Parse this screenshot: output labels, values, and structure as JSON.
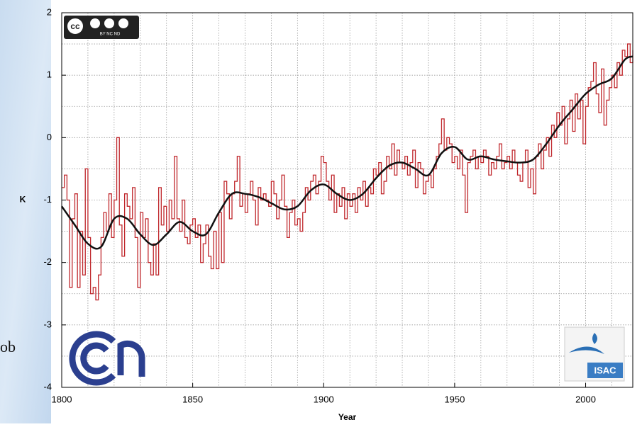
{
  "side_text": "ob",
  "logos": {
    "license_badge": "cc",
    "license": "BY NC ND",
    "institute": "ISAC"
  },
  "chart_data": {
    "type": "line",
    "xlabel": "Year",
    "ylabel": "K",
    "xlim": [
      1800,
      2018
    ],
    "ylim": [
      -4,
      2
    ],
    "xticks": [
      1800,
      1850,
      1900,
      1950,
      2000
    ],
    "yticks": [
      -4,
      -3,
      -2,
      -1,
      0,
      1,
      2
    ],
    "xgrid": [
      1810,
      1820,
      1830,
      1840,
      1850,
      1860,
      1870,
      1880,
      1890,
      1900,
      1910,
      1920,
      1930,
      1940,
      1950,
      1960,
      1970,
      1980,
      1990,
      2000,
      2010
    ],
    "ygrid": [
      -3.5,
      -3,
      -2.5,
      -2,
      -1.5,
      -1,
      -0.5,
      0,
      0.5,
      1,
      1.5
    ],
    "grid": true,
    "x": [
      1800,
      1801,
      1802,
      1803,
      1804,
      1805,
      1806,
      1807,
      1808,
      1809,
      1810,
      1811,
      1812,
      1813,
      1814,
      1815,
      1816,
      1817,
      1818,
      1819,
      1820,
      1821,
      1822,
      1823,
      1824,
      1825,
      1826,
      1827,
      1828,
      1829,
      1830,
      1831,
      1832,
      1833,
      1834,
      1835,
      1836,
      1837,
      1838,
      1839,
      1840,
      1841,
      1842,
      1843,
      1844,
      1845,
      1846,
      1847,
      1848,
      1849,
      1850,
      1851,
      1852,
      1853,
      1854,
      1855,
      1856,
      1857,
      1858,
      1859,
      1860,
      1861,
      1862,
      1863,
      1864,
      1865,
      1866,
      1867,
      1868,
      1869,
      1870,
      1871,
      1872,
      1873,
      1874,
      1875,
      1876,
      1877,
      1878,
      1879,
      1880,
      1881,
      1882,
      1883,
      1884,
      1885,
      1886,
      1887,
      1888,
      1889,
      1890,
      1891,
      1892,
      1893,
      1894,
      1895,
      1896,
      1897,
      1898,
      1899,
      1900,
      1901,
      1902,
      1903,
      1904,
      1905,
      1906,
      1907,
      1908,
      1909,
      1910,
      1911,
      1912,
      1913,
      1914,
      1915,
      1916,
      1917,
      1918,
      1919,
      1920,
      1921,
      1922,
      1923,
      1924,
      1925,
      1926,
      1927,
      1928,
      1929,
      1930,
      1931,
      1932,
      1933,
      1934,
      1935,
      1936,
      1937,
      1938,
      1939,
      1940,
      1941,
      1942,
      1943,
      1944,
      1945,
      1946,
      1947,
      1948,
      1949,
      1950,
      1951,
      1952,
      1953,
      1954,
      1955,
      1956,
      1957,
      1958,
      1959,
      1960,
      1961,
      1962,
      1963,
      1964,
      1965,
      1966,
      1967,
      1968,
      1969,
      1970,
      1971,
      1972,
      1973,
      1974,
      1975,
      1976,
      1977,
      1978,
      1979,
      1980,
      1981,
      1982,
      1983,
      1984,
      1985,
      1986,
      1987,
      1988,
      1989,
      1990,
      1991,
      1992,
      1993,
      1994,
      1995,
      1996,
      1997,
      1998,
      1999,
      2000,
      2001,
      2002,
      2003,
      2004,
      2005,
      2006,
      2007,
      2008,
      2009,
      2010,
      2011,
      2012,
      2013,
      2014,
      2015,
      2016,
      2017,
      2018
    ],
    "series": [
      {
        "style": "step",
        "color": "#c0282d",
        "values": [
          -0.8,
          -0.6,
          -1.0,
          -2.4,
          -1.3,
          -0.9,
          -2.4,
          -1.5,
          -2.2,
          -0.5,
          -1.6,
          -2.5,
          -2.4,
          -2.6,
          -2.2,
          -1.6,
          -1.2,
          -1.5,
          -0.9,
          -1.6,
          -1.0,
          0.0,
          -1.4,
          -1.9,
          -0.9,
          -1.1,
          -1.3,
          -0.8,
          -1.6,
          -2.4,
          -1.2,
          -1.6,
          -1.3,
          -2.0,
          -2.2,
          -1.7,
          -2.2,
          -0.8,
          -1.4,
          -1.1,
          -1.5,
          -1.0,
          -1.3,
          -0.3,
          -1.3,
          -1.5,
          -1.0,
          -1.6,
          -1.7,
          -1.4,
          -1.3,
          -1.6,
          -1.4,
          -2.0,
          -1.7,
          -1.4,
          -1.9,
          -2.1,
          -1.5,
          -2.1,
          -1.2,
          -2.0,
          -0.7,
          -0.9,
          -1.3,
          -0.9,
          -0.7,
          -0.3,
          -1.1,
          -0.9,
          -1.2,
          -0.9,
          -0.7,
          -1.0,
          -1.4,
          -0.8,
          -1.0,
          -0.9,
          -1.0,
          -1.1,
          -0.7,
          -0.9,
          -1.3,
          -1.0,
          -0.6,
          -1.1,
          -1.6,
          -1.2,
          -1.0,
          -1.4,
          -1.3,
          -1.5,
          -1.2,
          -0.8,
          -1.0,
          -0.7,
          -0.6,
          -0.9,
          -0.7,
          -0.3,
          -0.4,
          -0.7,
          -1.0,
          -0.6,
          -1.2,
          -0.9,
          -1.1,
          -0.8,
          -1.3,
          -0.9,
          -1.1,
          -0.9,
          -1.2,
          -0.8,
          -1.0,
          -0.7,
          -1.1,
          -0.8,
          -0.9,
          -0.5,
          -0.6,
          -0.4,
          -0.9,
          -0.7,
          -0.3,
          -0.5,
          -0.1,
          -0.6,
          -0.2,
          -0.4,
          -0.5,
          -0.3,
          -0.6,
          -0.4,
          -0.2,
          -0.8,
          -0.4,
          -0.5,
          -0.9,
          -0.7,
          -0.6,
          -0.8,
          -0.5,
          -0.3,
          -0.1,
          0.3,
          -0.2,
          0.0,
          -0.1,
          -0.4,
          -0.3,
          -0.5,
          -0.2,
          -0.6,
          -1.2,
          -0.4,
          -0.3,
          -0.2,
          -0.5,
          -0.3,
          -0.4,
          -0.2,
          -0.3,
          -0.6,
          -0.4,
          -0.5,
          -0.3,
          -0.1,
          -0.5,
          -0.4,
          -0.3,
          -0.5,
          -0.2,
          -0.4,
          -0.6,
          -0.7,
          -0.4,
          -0.2,
          -0.8,
          -0.5,
          -0.9,
          -0.3,
          -0.1,
          -0.5,
          -0.2,
          0.0,
          -0.3,
          0.2,
          0.0,
          0.4,
          0.2,
          0.5,
          -0.1,
          0.3,
          0.6,
          0.1,
          0.7,
          0.3,
          0.6,
          -0.1,
          0.5,
          0.8,
          0.9,
          1.2,
          0.7,
          0.4,
          1.1,
          0.2,
          0.6,
          0.8,
          1.0,
          0.8,
          1.2,
          1.0,
          1.4,
          1.3,
          1.5,
          1.2,
          1.4
        ]
      },
      {
        "style": "smooth",
        "color": "#111111",
        "x": [
          1800,
          1805,
          1810,
          1815,
          1820,
          1825,
          1830,
          1835,
          1840,
          1845,
          1850,
          1855,
          1860,
          1865,
          1870,
          1875,
          1880,
          1885,
          1890,
          1895,
          1900,
          1905,
          1910,
          1915,
          1920,
          1925,
          1930,
          1935,
          1940,
          1945,
          1950,
          1955,
          1960,
          1965,
          1970,
          1975,
          1980,
          1985,
          1990,
          1995,
          2000,
          2005,
          2010,
          2015,
          2018
        ],
        "values": [
          -1.1,
          -1.4,
          -1.7,
          -1.75,
          -1.3,
          -1.3,
          -1.55,
          -1.72,
          -1.55,
          -1.35,
          -1.5,
          -1.55,
          -1.2,
          -0.9,
          -0.9,
          -0.95,
          -1.05,
          -1.15,
          -1.1,
          -0.85,
          -0.75,
          -0.9,
          -1.0,
          -0.9,
          -0.65,
          -0.45,
          -0.4,
          -0.5,
          -0.6,
          -0.25,
          -0.15,
          -0.35,
          -0.3,
          -0.35,
          -0.38,
          -0.4,
          -0.35,
          -0.1,
          0.2,
          0.45,
          0.7,
          0.85,
          0.95,
          1.25,
          1.3
        ]
      }
    ]
  }
}
